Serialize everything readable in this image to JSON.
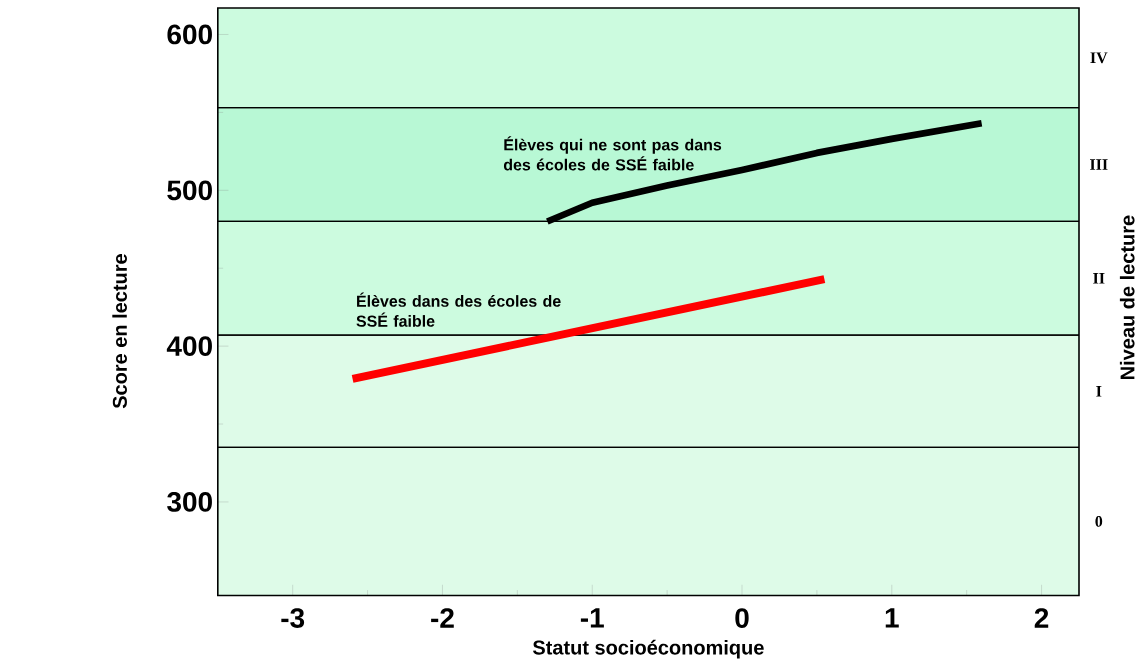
{
  "chart_data": {
    "type": "line",
    "xlabel": "Statut socioéconomique",
    "ylabel": "Score en lecture",
    "y2label": "Niveau de lecture",
    "xlim": [
      -3.5,
      2.25
    ],
    "xticks": [
      -3,
      -2,
      -1,
      0,
      1,
      2
    ],
    "ylim": [
      240,
      617
    ],
    "yticks": [
      300,
      400,
      500,
      600
    ],
    "grid": false,
    "line_style": "solid",
    "marker": "none",
    "series": [
      {
        "name": "Élèves qui ne sont pas dans des écoles de SSÉ faible",
        "color": "#000000",
        "x": [
          -1.3,
          -1,
          -0.5,
          0,
          0.5,
          1,
          1.6
        ],
        "values": [
          480,
          492,
          503,
          513,
          524,
          533,
          543
        ]
      },
      {
        "name": "Élèves dans des écoles de SSÉ faible",
        "color": "#ff0000",
        "x": [
          -2.6,
          0.55
        ],
        "values": [
          379,
          443
        ]
      }
    ],
    "bands": [
      {
        "axis": "y",
        "from": 240,
        "to": 335,
        "label": "0",
        "color": "#defbe8"
      },
      {
        "axis": "y",
        "from": 335,
        "to": 407,
        "label": "I",
        "color": "#defbe8"
      },
      {
        "axis": "y",
        "from": 407,
        "to": 480,
        "label": "II",
        "color": "#ccfbdf"
      },
      {
        "axis": "y",
        "from": 480,
        "to": 553,
        "label": "III",
        "color": "#b8f8d5"
      },
      {
        "axis": "y",
        "from": 553,
        "to": 617,
        "label": "IV",
        "color": "#ccfbdf"
      }
    ]
  }
}
